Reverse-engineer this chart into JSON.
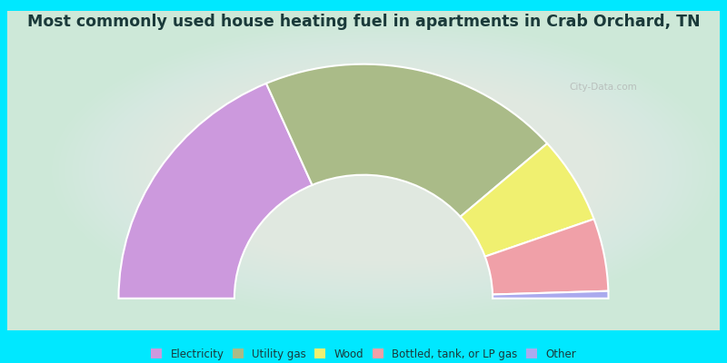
{
  "title": "Most commonly used house heating fuel in apartments in Crab Orchard, TN",
  "title_fontsize": 12.5,
  "title_color": "#1a3a3a",
  "background_outer": "#00e8ff",
  "background_inner": "#cde8d8",
  "segments": [
    {
      "label": "Electricity",
      "value": 37,
      "color": "#cc99dd"
    },
    {
      "label": "Utility gas",
      "value": 40,
      "color": "#aabb88"
    },
    {
      "label": "Wood",
      "value": 12,
      "color": "#f0f070"
    },
    {
      "label": "Bottled, tank, or LP gas",
      "value": 10,
      "color": "#f0a0a8"
    },
    {
      "label": "Other",
      "value": 1,
      "color": "#aaaaee"
    }
  ],
  "legend_colors": [
    "#cc99dd",
    "#aabb88",
    "#f0f070",
    "#f0a0a8",
    "#aaaaee"
  ],
  "legend_labels": [
    "Electricity",
    "Utility gas",
    "Wood",
    "Bottled, tank, or LP gas",
    "Other"
  ],
  "watermark": "City-Data.com"
}
